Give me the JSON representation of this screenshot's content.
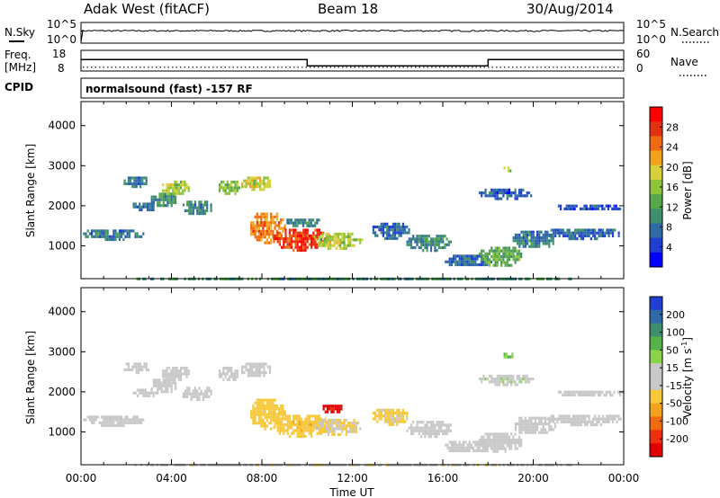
{
  "header": {
    "site": "Adak West (fitACF)",
    "beam": "Beam 18",
    "date": "30/Aug/2014"
  },
  "top_panels": {
    "sky_label": "N.Sky",
    "sky_ticks": [
      "10^5",
      "10^0"
    ],
    "search_label": "N.Search",
    "search_ticks": [
      "10^5",
      "10^0"
    ],
    "freq_label": "Freq.",
    "freq_unit": "[MHz]",
    "freq_ticks": [
      "18",
      "8"
    ],
    "nave_label": "Nave",
    "nave_ticks": [
      "60",
      "0"
    ],
    "cpid_label": "CPID",
    "cpid_text": "normalsound (fast) -157 RF"
  },
  "chart_data": [
    {
      "type": "line",
      "name": "sky-noise",
      "x": [
        "00:00",
        "24:00"
      ],
      "y_scale": "log",
      "ylim": [
        1,
        100000
      ],
      "level": 1000
    },
    {
      "type": "line",
      "name": "frequency",
      "x": [
        "00:00",
        "10:00",
        "10:00",
        "18:00",
        "18:00",
        "24:00"
      ],
      "y": [
        13.5,
        13.5,
        10.5,
        10.5,
        13.5,
        13.5
      ],
      "ylim": [
        8,
        18
      ],
      "nave": 11,
      "nave_lim": [
        0,
        60
      ]
    },
    {
      "type": "heatmap",
      "name": "power",
      "ylabel": "Slant Range [km]",
      "yticks": [
        "1000",
        "2000",
        "3000",
        "4000"
      ],
      "ylim": [
        180,
        4600
      ],
      "xlim": [
        0,
        24
      ],
      "colorbar": {
        "label": "Power [dB]",
        "ticks": [
          "28",
          "24",
          "20",
          "16",
          "12",
          "8",
          "4"
        ],
        "range": [
          0,
          30
        ],
        "colors": [
          "#0000ff",
          "#1f3fd2",
          "#2f6aa6",
          "#3f8f6f",
          "#56a84a",
          "#8dc43a",
          "#d8d03a",
          "#f2a21c",
          "#f06a10",
          "#e23010",
          "#ff0000"
        ]
      },
      "regions": [
        {
          "t": [
            0.0,
            2.8
          ],
          "r": [
            1180,
            1480
          ],
          "v": 8
        },
        {
          "t": [
            1.8,
            3.0
          ],
          "r": [
            2500,
            2800
          ],
          "v": 8
        },
        {
          "t": [
            2.2,
            3.4
          ],
          "r": [
            1900,
            2150
          ],
          "v": 7
        },
        {
          "t": [
            3.0,
            4.2
          ],
          "r": [
            2000,
            2400
          ],
          "v": 10
        },
        {
          "t": [
            3.5,
            4.8
          ],
          "r": [
            2300,
            2700
          ],
          "v": 16
        },
        {
          "t": [
            4.4,
            5.8
          ],
          "r": [
            1800,
            2200
          ],
          "v": 9
        },
        {
          "t": [
            6.0,
            7.0
          ],
          "r": [
            2300,
            2700
          ],
          "v": 14
        },
        {
          "t": [
            7.0,
            8.4
          ],
          "r": [
            2400,
            2800
          ],
          "v": 17
        },
        {
          "t": [
            7.4,
            9.0
          ],
          "r": [
            1100,
            1900
          ],
          "v": 22
        },
        {
          "t": [
            8.4,
            11.0
          ],
          "r": [
            900,
            1500
          ],
          "v": 26
        },
        {
          "t": [
            10.2,
            12.4
          ],
          "r": [
            950,
            1400
          ],
          "v": 16
        },
        {
          "t": [
            9.0,
            10.6
          ],
          "r": [
            1500,
            1750
          ],
          "v": 9
        },
        {
          "t": [
            12.8,
            14.5
          ],
          "r": [
            1200,
            1650
          ],
          "v": 7
        },
        {
          "t": [
            14.3,
            16.4
          ],
          "r": [
            900,
            1350
          ],
          "v": 9
        },
        {
          "t": [
            16.0,
            18.2
          ],
          "r": [
            500,
            850
          ],
          "v": 7
        },
        {
          "t": [
            17.5,
            19.5
          ],
          "r": [
            500,
            1050
          ],
          "v": 12
        },
        {
          "t": [
            19.0,
            21.0
          ],
          "r": [
            950,
            1450
          ],
          "v": 8
        },
        {
          "t": [
            20.5,
            24.0
          ],
          "r": [
            1200,
            1500
          ],
          "v": 7
        },
        {
          "t": [
            18.6,
            19.1
          ],
          "r": [
            2850,
            3050
          ],
          "v": 16
        },
        {
          "t": [
            17.5,
            20.0
          ],
          "r": [
            2200,
            2500
          ],
          "v": 6
        },
        {
          "t": [
            21.0,
            24.0
          ],
          "r": [
            1900,
            2100
          ],
          "v": 5
        },
        {
          "t": [
            0.0,
            24.0
          ],
          "r": [
            190,
            280
          ],
          "v": 10
        }
      ]
    },
    {
      "type": "heatmap",
      "name": "velocity",
      "ylabel": "Slant Range [km]",
      "yticks": [
        "1000",
        "2000",
        "3000",
        "4000"
      ],
      "ylim": [
        180,
        4600
      ],
      "xlim": [
        0,
        24
      ],
      "xlabel": "Time UT",
      "xticks": [
        "00:00",
        "04:00",
        "08:00",
        "12:00",
        "16:00",
        "20:00",
        "00:00"
      ],
      "colorbar": {
        "label": "Velocity [m s",
        "label_sup": "-1",
        "ticks": [
          "200",
          "100",
          "50",
          "15",
          "-15",
          "-50",
          "-100",
          "-200"
        ],
        "range": [
          -250,
          250
        ],
        "colors": [
          "#e00000",
          "#ee3010",
          "#f06a10",
          "#f2a21c",
          "#f6c83a",
          "#c8c8c8",
          "#c8c8c8",
          "#8ad24a",
          "#55b24a",
          "#3f8f6f",
          "#2f6aa6",
          "#1f3fd2"
        ]
      },
      "regions": [
        {
          "t": [
            0.0,
            2.8
          ],
          "r": [
            1180,
            1480
          ],
          "v": 0
        },
        {
          "t": [
            1.8,
            3.0
          ],
          "r": [
            2500,
            2800
          ],
          "v": 0
        },
        {
          "t": [
            2.2,
            3.4
          ],
          "r": [
            1900,
            2150
          ],
          "v": 0
        },
        {
          "t": [
            3.0,
            4.2
          ],
          "r": [
            2000,
            2400
          ],
          "v": 0
        },
        {
          "t": [
            3.5,
            4.8
          ],
          "r": [
            2300,
            2700
          ],
          "v": 0
        },
        {
          "t": [
            4.4,
            5.8
          ],
          "r": [
            1800,
            2200
          ],
          "v": 0
        },
        {
          "t": [
            6.0,
            7.0
          ],
          "r": [
            2300,
            2700
          ],
          "v": 0
        },
        {
          "t": [
            7.0,
            8.4
          ],
          "r": [
            2400,
            2800
          ],
          "v": 0
        },
        {
          "t": [
            7.4,
            9.0
          ],
          "r": [
            1100,
            1900
          ],
          "v": -60
        },
        {
          "t": [
            8.4,
            11.0
          ],
          "r": [
            900,
            1500
          ],
          "v": -70
        },
        {
          "t": [
            10.2,
            12.4
          ],
          "r": [
            950,
            1400
          ],
          "v": -40
        },
        {
          "t": [
            10.6,
            11.6
          ],
          "r": [
            1500,
            1750
          ],
          "v": -220
        },
        {
          "t": [
            12.8,
            14.5
          ],
          "r": [
            1200,
            1650
          ],
          "v": -50
        },
        {
          "t": [
            14.3,
            16.4
          ],
          "r": [
            900,
            1350
          ],
          "v": 0
        },
        {
          "t": [
            16.0,
            18.2
          ],
          "r": [
            500,
            850
          ],
          "v": 0
        },
        {
          "t": [
            17.5,
            19.5
          ],
          "r": [
            500,
            1050
          ],
          "v": 0
        },
        {
          "t": [
            19.0,
            21.0
          ],
          "r": [
            950,
            1450
          ],
          "v": 0
        },
        {
          "t": [
            20.5,
            24.0
          ],
          "r": [
            1200,
            1500
          ],
          "v": 0
        },
        {
          "t": [
            18.6,
            19.1
          ],
          "r": [
            2850,
            3050
          ],
          "v": 80
        },
        {
          "t": [
            17.5,
            20.0
          ],
          "r": [
            2200,
            2500
          ],
          "v": 30
        },
        {
          "t": [
            21.0,
            24.0
          ],
          "r": [
            1900,
            2100
          ],
          "v": 0
        },
        {
          "t": [
            0.0,
            24.0
          ],
          "r": [
            190,
            280
          ],
          "v": -30
        }
      ]
    }
  ]
}
